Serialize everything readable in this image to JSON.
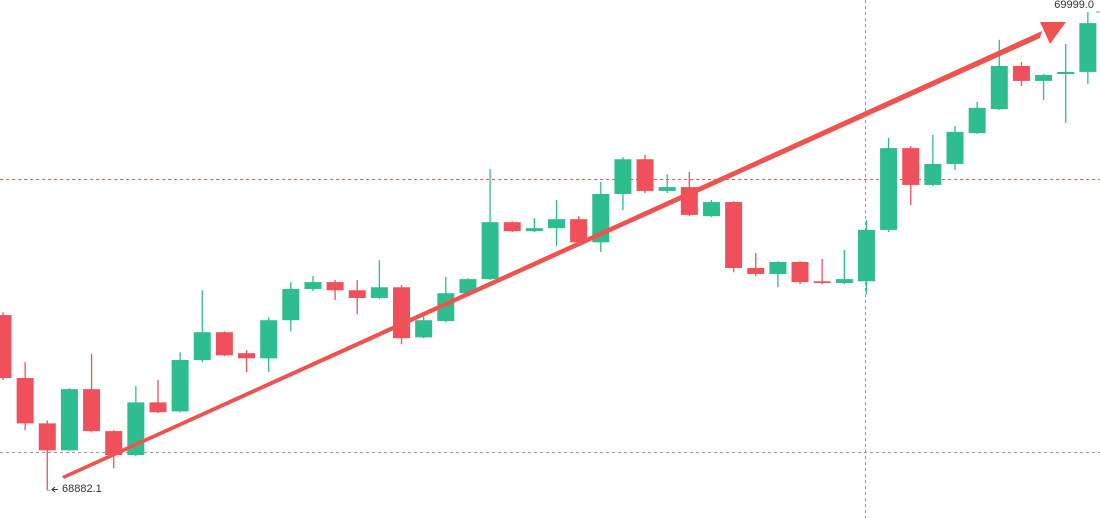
{
  "chart_data": {
    "type": "candlestick",
    "open": [
      69291,
      69144,
      69038,
      68975,
      69118,
      69020,
      68964,
      69087,
      69066,
      69186,
      69251,
      69202,
      69190,
      69279,
      69352,
      69368,
      69349,
      69331,
      69356,
      69239,
      69277,
      69342,
      69375,
      69508,
      69487,
      69494,
      69515,
      69461,
      69574,
      69655,
      69581,
      69590,
      69522,
      69555,
      69401,
      69387,
      69415,
      69370,
      69366,
      69370,
      69490,
      69681,
      69595,
      69644,
      69716,
      69772,
      69873,
      69838,
      69854,
      69859
    ],
    "high": [
      69298,
      69181,
      69045,
      69120,
      69200,
      69022,
      69125,
      69139,
      69204,
      69349,
      69253,
      69209,
      69286,
      69368,
      69382,
      69373,
      69373,
      69419,
      69361,
      69298,
      69380,
      69377,
      69632,
      69510,
      69517,
      69560,
      69522,
      69602,
      69660,
      69665,
      69620,
      69625,
      69560,
      69557,
      69436,
      69417,
      69417,
      69422,
      69443,
      69513,
      69705,
      69686,
      69712,
      69733,
      69789,
      69934,
      69882,
      69854,
      69924,
      69999.0
    ],
    "low": [
      69139,
      69022,
      68882.1,
      68975,
      69017,
      68933,
      68961,
      69062,
      69064,
      69181,
      69195,
      69158,
      69158,
      69253,
      69347,
      69326,
      69293,
      69328,
      69223,
      69237,
      69274,
      69340,
      69373,
      69485,
      69485,
      69452,
      69454,
      69438,
      69536,
      69576,
      69576,
      69522,
      69520,
      69391,
      69382,
      69356,
      69363,
      69363,
      69363,
      69340,
      69485,
      69548,
      69592,
      69630,
      69714,
      69770,
      69826,
      69793,
      69740,
      69831
    ],
    "close": [
      69144,
      69038,
      68975,
      69118,
      69020,
      68964,
      69087,
      69064,
      69186,
      69251,
      69197,
      69190,
      69279,
      69352,
      69368,
      69349,
      69331,
      69356,
      69237,
      69279,
      69342,
      69375,
      69508,
      69487,
      69494,
      69515,
      69461,
      69574,
      69655,
      69581,
      69590,
      69525,
      69555,
      69401,
      69387,
      69415,
      69368,
      69366,
      69375,
      69490,
      69681,
      69595,
      69644,
      69719,
      69775,
      69873,
      69838,
      69852,
      69859,
      69973
    ],
    "up_color": "#2ebd8f",
    "down_color": "#f0505c",
    "ylim": [
      68817,
      70027
    ],
    "annotations": [
      {
        "value": 69999,
        "label": "69999.0"
      },
      {
        "value": 68882.1,
        "label": "68882.1"
      }
    ]
  }
}
